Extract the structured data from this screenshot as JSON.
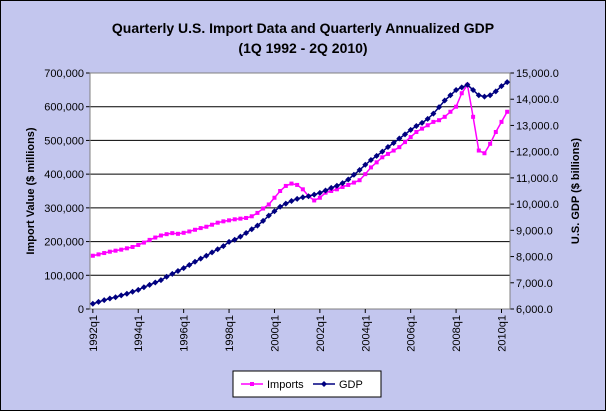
{
  "chart_data": {
    "type": "line",
    "title": "Quarterly U.S. Import Data and Quarterly Annualized GDP",
    "subtitle": "(1Q 1992 - 2Q 2010)",
    "y_label": "Import Value ($ millions)",
    "y2_label": "U.S. GDP ($ billions)",
    "categories": [
      "1992q1",
      null,
      null,
      null,
      null,
      null,
      null,
      null,
      "1994q1",
      null,
      null,
      null,
      null,
      null,
      null,
      null,
      "1996q1",
      null,
      null,
      null,
      null,
      null,
      null,
      null,
      "1998q1",
      null,
      null,
      null,
      null,
      null,
      null,
      null,
      "2000q1",
      null,
      null,
      null,
      null,
      null,
      null,
      null,
      "2002q1",
      null,
      null,
      null,
      null,
      null,
      null,
      null,
      "2004q1",
      null,
      null,
      null,
      null,
      null,
      null,
      null,
      "2006q1",
      null,
      null,
      null,
      null,
      null,
      null,
      null,
      "2008q1",
      null,
      null,
      null,
      null,
      null,
      null,
      null,
      "2010q1",
      null
    ],
    "series": [
      {
        "name": "Imports",
        "color": "#ff00ff",
        "marker": "square",
        "values": [
          158000,
          162000,
          166000,
          170000,
          173000,
          176000,
          180000,
          184000,
          190000,
          197000,
          205000,
          212000,
          218000,
          222000,
          225000,
          223000,
          226000,
          230000,
          235000,
          240000,
          244000,
          250000,
          256000,
          260000,
          263000,
          266000,
          268000,
          270000,
          275000,
          285000,
          298000,
          310000,
          330000,
          350000,
          365000,
          372000,
          368000,
          355000,
          335000,
          322000,
          330000,
          345000,
          350000,
          355000,
          362000,
          368000,
          375000,
          382000,
          400000,
          420000,
          435000,
          450000,
          460000,
          470000,
          480000,
          495000,
          510000,
          525000,
          535000,
          545000,
          555000,
          560000,
          570000,
          585000,
          600000,
          640000,
          665000,
          570000,
          470000,
          462000,
          490000,
          525000,
          555000,
          585000
        ]
      },
      {
        "name": "GDP",
        "color": "#000080",
        "marker": "diamond",
        "axis": "y2",
        "values": [
          6200,
          6270,
          6340,
          6400,
          6450,
          6520,
          6580,
          6660,
          6730,
          6830,
          6920,
          7010,
          7100,
          7230,
          7340,
          7450,
          7560,
          7680,
          7800,
          7920,
          8030,
          8160,
          8280,
          8400,
          8560,
          8640,
          8760,
          8900,
          9040,
          9180,
          9360,
          9560,
          9730,
          9900,
          10020,
          10120,
          10200,
          10260,
          10300,
          10360,
          10430,
          10520,
          10620,
          10700,
          10800,
          10940,
          11120,
          11300,
          11500,
          11680,
          11840,
          12000,
          12180,
          12330,
          12500,
          12660,
          12830,
          12980,
          13100,
          13250,
          13450,
          13700,
          13950,
          14150,
          14350,
          14450,
          14550,
          14350,
          14150,
          14100,
          14150,
          14300,
          14500,
          14650
        ]
      }
    ],
    "ylim": [
      0,
      700000
    ],
    "yticks": [
      0,
      {
        "value": 100000,
        "label": "100,000"
      },
      {
        "value": 200000,
        "label": "200,000"
      },
      {
        "value": 300000,
        "label": "300,000"
      },
      {
        "value": 400000,
        "label": "400,000"
      },
      {
        "value": 500000,
        "label": "500,000"
      },
      {
        "value": 600000,
        "label": "600,000"
      },
      {
        "value": 700000,
        "label": "700,000"
      }
    ],
    "y2lim": [
      6000,
      15000
    ],
    "y2ticks": [
      {
        "value": 6000,
        "label": "6,000.0"
      },
      {
        "value": 7000,
        "label": "7,000.0"
      },
      {
        "value": 8000,
        "label": "8,000.0"
      },
      {
        "value": 9000,
        "label": "9,000.0"
      },
      {
        "value": 10000,
        "label": "10,000.0"
      },
      {
        "value": 11000,
        "label": "11,000.0"
      },
      {
        "value": 12000,
        "label": "12,000.0"
      },
      {
        "value": 13000,
        "label": "13,000.0"
      },
      {
        "value": 14000,
        "label": "14,000.0"
      },
      {
        "value": 15000,
        "label": "15,000.0"
      }
    ],
    "grid": true,
    "legend": "bottom"
  }
}
